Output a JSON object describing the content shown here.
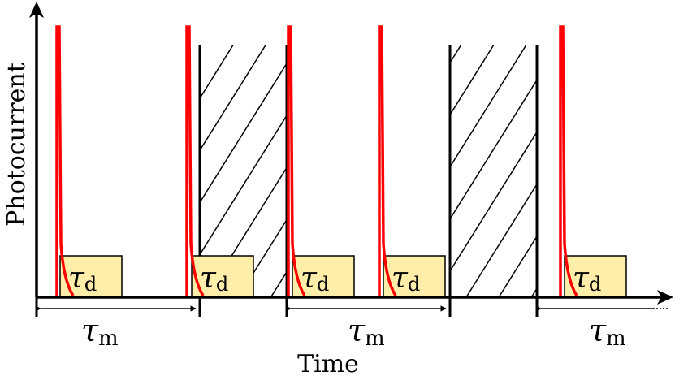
{
  "diagram": {
    "x_axis_label": "Time",
    "y_axis_label": "Photocurrent",
    "dead_time_label": {
      "symbol": "τ",
      "subscript": "d"
    },
    "measurement_window_label": {
      "symbol": "τ",
      "subscript": "m"
    },
    "colors": {
      "pulse": "#ff0000",
      "dead_time_box_fill": "#ffeeaa",
      "dead_time_box_stroke": "#000000",
      "hatch": "#000000",
      "axes": "#000000"
    }
  }
}
